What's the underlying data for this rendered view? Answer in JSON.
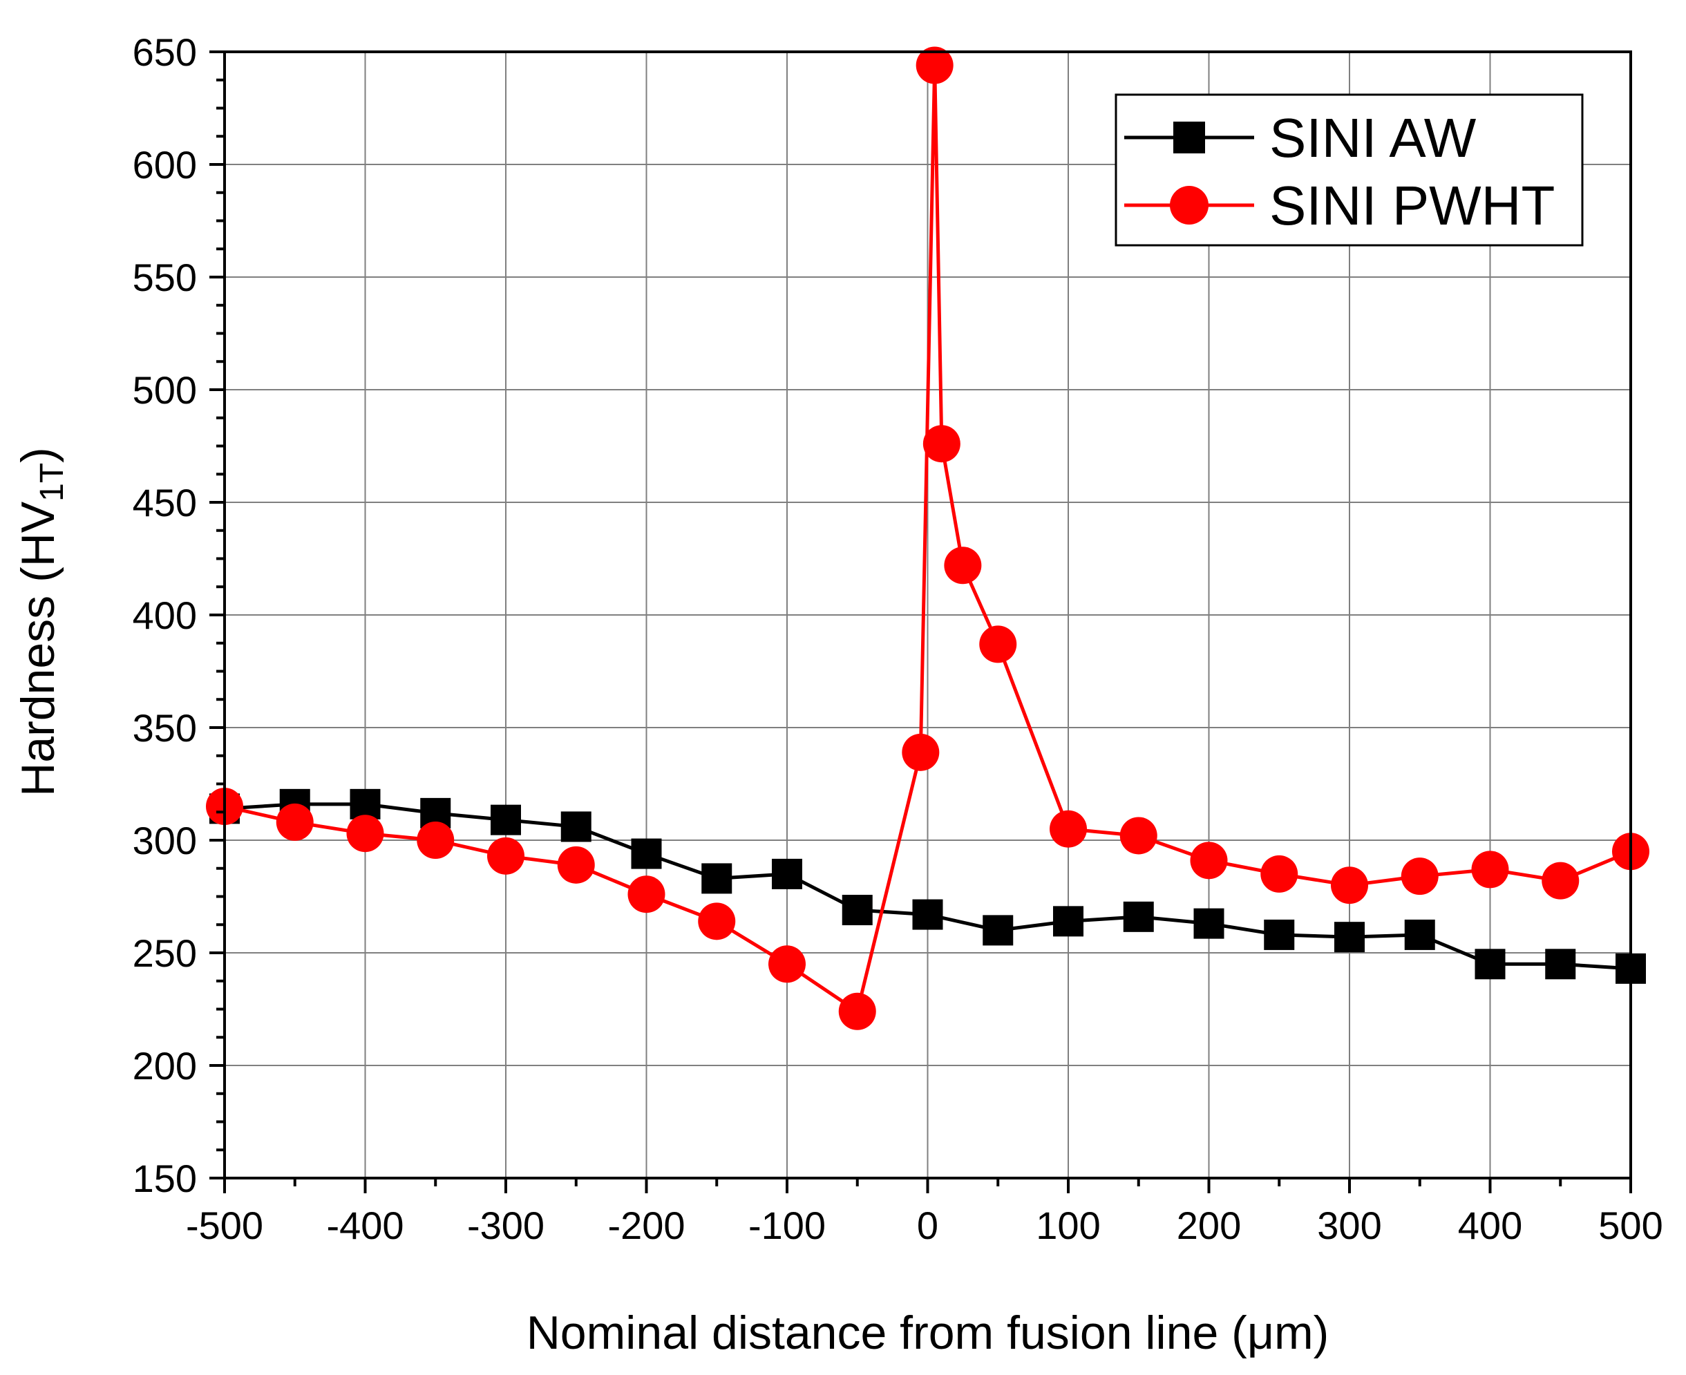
{
  "chart_data": {
    "type": "line",
    "title": "",
    "xlabel": "Nominal distance from fusion line (μm)",
    "ylabel": {
      "text": "Hardness (HV",
      "subscript": "1T",
      "close": ")"
    },
    "xlim": [
      -500,
      500
    ],
    "ylim": [
      150,
      650
    ],
    "xticks": [
      -500,
      -400,
      -300,
      -200,
      -100,
      0,
      100,
      200,
      300,
      400,
      500
    ],
    "yticks": [
      150,
      200,
      250,
      300,
      350,
      400,
      450,
      500,
      550,
      600,
      650
    ],
    "grid": true,
    "legend_position": "top-right",
    "series": [
      {
        "name": "SINI AW",
        "color": "#000000",
        "marker": "square",
        "x": [
          -500,
          -450,
          -400,
          -350,
          -300,
          -250,
          -200,
          -150,
          -100,
          -50,
          0,
          50,
          100,
          150,
          200,
          250,
          300,
          350,
          400,
          450,
          500
        ],
        "values": [
          314,
          316,
          316,
          312,
          309,
          306,
          294,
          283,
          285,
          269,
          267,
          260,
          264,
          266,
          263,
          258,
          257,
          258,
          245,
          245,
          243
        ]
      },
      {
        "name": "SINI PWHT",
        "color": "#ff0000",
        "marker": "circle",
        "x": [
          -500,
          -450,
          -400,
          -350,
          -300,
          -250,
          -200,
          -150,
          -100,
          -50,
          -5,
          5,
          10,
          25,
          50,
          100,
          150,
          200,
          250,
          300,
          350,
          400,
          450,
          500
        ],
        "values": [
          315,
          308,
          303,
          300,
          293,
          289,
          276,
          264,
          245,
          224,
          339,
          644,
          476,
          422,
          387,
          305,
          302,
          291,
          285,
          280,
          284,
          287,
          282,
          295
        ]
      }
    ]
  }
}
